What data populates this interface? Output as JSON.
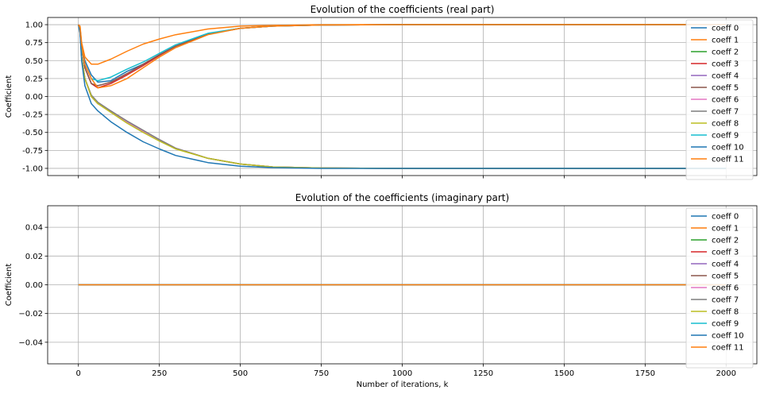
{
  "chart_data": [
    {
      "type": "line",
      "title": "Evolution of the coefficients (real part)",
      "xlabel": "",
      "ylabel": "Coefficient",
      "xlim": [
        -95,
        2095
      ],
      "ylim": [
        -1.1,
        1.1
      ],
      "xticks": [
        0,
        250,
        500,
        750,
        1000,
        1250,
        1500,
        1750,
        2000
      ],
      "xticklabels": [
        "",
        "",
        "",
        "",
        "",
        "",
        "",
        "",
        ""
      ],
      "yticks": [
        1.0,
        0.75,
        0.5,
        0.25,
        0.0,
        -0.25,
        -0.5,
        -0.75,
        -1.0
      ],
      "yticklabels": [
        "1.00",
        "0.75",
        "0.50",
        "0.25",
        "0.00",
        "-0.25",
        "-0.50",
        "-0.75",
        "-1.00"
      ],
      "grid": true,
      "legend_position": "upper right",
      "series": [
        {
          "name": "coeff 0",
          "color": "#1f77b4",
          "x": [
            0,
            5,
            10,
            20,
            40,
            60,
            100,
            150,
            200,
            250,
            300,
            400,
            500,
            600,
            750,
            1000,
            1500,
            2000
          ],
          "y": [
            1.0,
            0.95,
            0.7,
            0.5,
            0.3,
            0.2,
            0.22,
            0.35,
            0.45,
            0.58,
            0.7,
            0.87,
            0.95,
            0.98,
            0.995,
            1.0,
            1.0,
            1.0
          ]
        },
        {
          "name": "coeff 1",
          "color": "#ff7f0e",
          "x": [
            0,
            5,
            10,
            20,
            40,
            60,
            100,
            150,
            200,
            250,
            300,
            400,
            500,
            600,
            750,
            1000,
            1500,
            2000
          ],
          "y": [
            1.0,
            0.98,
            0.75,
            0.55,
            0.45,
            0.45,
            0.52,
            0.63,
            0.73,
            0.8,
            0.86,
            0.94,
            0.98,
            0.99,
            1.0,
            1.0,
            1.0,
            1.0
          ]
        },
        {
          "name": "coeff 2",
          "color": "#2ca02c",
          "x": [
            0,
            5,
            10,
            20,
            40,
            60,
            100,
            150,
            200,
            250,
            300,
            400,
            500,
            600,
            750,
            1000,
            1500,
            2000
          ],
          "y": [
            1.0,
            0.9,
            0.55,
            0.25,
            0.0,
            -0.1,
            -0.2,
            -0.35,
            -0.48,
            -0.6,
            -0.72,
            -0.86,
            -0.94,
            -0.98,
            -0.995,
            -1.0,
            -1.0,
            -1.0
          ]
        },
        {
          "name": "coeff 3",
          "color": "#d62728",
          "x": [
            0,
            5,
            10,
            20,
            40,
            60,
            100,
            150,
            200,
            250,
            300,
            400,
            500,
            600,
            750,
            1000,
            1500,
            2000
          ],
          "y": [
            1.0,
            0.95,
            0.7,
            0.4,
            0.18,
            0.12,
            0.18,
            0.3,
            0.43,
            0.57,
            0.7,
            0.87,
            0.95,
            0.98,
            0.995,
            1.0,
            1.0,
            1.0
          ]
        },
        {
          "name": "coeff 4",
          "color": "#9467bd",
          "x": [
            0,
            5,
            10,
            20,
            40,
            60,
            100,
            150,
            200,
            250,
            300,
            400,
            500,
            600,
            750,
            1000,
            1500,
            2000
          ],
          "y": [
            1.0,
            0.9,
            0.55,
            0.25,
            0.0,
            -0.1,
            -0.2,
            -0.35,
            -0.48,
            -0.6,
            -0.72,
            -0.86,
            -0.94,
            -0.98,
            -0.995,
            -1.0,
            -1.0,
            -1.0
          ]
        },
        {
          "name": "coeff 5",
          "color": "#8c564b",
          "x": [
            0,
            5,
            10,
            20,
            40,
            60,
            100,
            150,
            200,
            250,
            300,
            400,
            500,
            600,
            750,
            1000,
            1500,
            2000
          ],
          "y": [
            1.0,
            0.95,
            0.7,
            0.4,
            0.18,
            0.15,
            0.2,
            0.32,
            0.45,
            0.58,
            0.7,
            0.87,
            0.95,
            0.98,
            0.995,
            1.0,
            1.0,
            1.0
          ]
        },
        {
          "name": "coeff 6",
          "color": "#e377c2",
          "x": [
            0,
            5,
            10,
            20,
            40,
            60,
            100,
            150,
            200,
            250,
            300,
            400,
            500,
            600,
            750,
            1000,
            1500,
            2000
          ],
          "y": [
            1.0,
            0.9,
            0.55,
            0.25,
            0.0,
            -0.1,
            -0.2,
            -0.35,
            -0.48,
            -0.6,
            -0.72,
            -0.86,
            -0.94,
            -0.98,
            -0.995,
            -1.0,
            -1.0,
            -1.0
          ]
        },
        {
          "name": "coeff 7",
          "color": "#7f7f7f",
          "x": [
            0,
            5,
            10,
            20,
            40,
            60,
            100,
            150,
            200,
            250,
            300,
            400,
            500,
            600,
            750,
            1000,
            1500,
            2000
          ],
          "y": [
            1.0,
            0.9,
            0.55,
            0.25,
            0.02,
            -0.08,
            -0.2,
            -0.34,
            -0.47,
            -0.6,
            -0.72,
            -0.86,
            -0.94,
            -0.98,
            -0.995,
            -1.0,
            -1.0,
            -1.0
          ]
        },
        {
          "name": "coeff 8",
          "color": "#bcbd22",
          "x": [
            0,
            5,
            10,
            20,
            40,
            60,
            100,
            150,
            200,
            250,
            300,
            400,
            500,
            600,
            750,
            1000,
            1500,
            2000
          ],
          "y": [
            1.0,
            0.9,
            0.55,
            0.25,
            0.0,
            -0.1,
            -0.22,
            -0.37,
            -0.5,
            -0.62,
            -0.73,
            -0.86,
            -0.94,
            -0.98,
            -0.995,
            -1.0,
            -1.0,
            -1.0
          ]
        },
        {
          "name": "coeff 9",
          "color": "#17becf",
          "x": [
            0,
            5,
            10,
            20,
            40,
            60,
            100,
            150,
            200,
            250,
            300,
            400,
            500,
            600,
            750,
            1000,
            1500,
            2000
          ],
          "y": [
            1.0,
            0.95,
            0.7,
            0.45,
            0.25,
            0.22,
            0.27,
            0.38,
            0.48,
            0.6,
            0.72,
            0.88,
            0.95,
            0.98,
            0.995,
            1.0,
            1.0,
            1.0
          ]
        },
        {
          "name": "coeff 10",
          "color": "#1f77b4",
          "x": [
            0,
            5,
            10,
            20,
            40,
            60,
            100,
            150,
            200,
            250,
            300,
            400,
            500,
            600,
            750,
            1000,
            1500,
            2000
          ],
          "y": [
            1.0,
            0.88,
            0.5,
            0.15,
            -0.1,
            -0.2,
            -0.35,
            -0.5,
            -0.63,
            -0.73,
            -0.82,
            -0.92,
            -0.97,
            -0.99,
            -1.0,
            -1.0,
            -1.0,
            -1.0
          ]
        },
        {
          "name": "coeff 11",
          "color": "#ff7f0e",
          "x": [
            0,
            5,
            10,
            20,
            40,
            60,
            100,
            150,
            200,
            250,
            300,
            400,
            500,
            600,
            750,
            1000,
            1500,
            2000
          ],
          "y": [
            1.0,
            0.96,
            0.72,
            0.45,
            0.25,
            0.12,
            0.15,
            0.25,
            0.4,
            0.55,
            0.68,
            0.86,
            0.95,
            0.98,
            0.995,
            1.0,
            1.0,
            1.0
          ]
        }
      ]
    },
    {
      "type": "line",
      "title": "Evolution of the coefficients (imaginary part)",
      "xlabel": "Number of iterations, k",
      "ylabel": "Coefficient",
      "xlim": [
        -95,
        2095
      ],
      "ylim": [
        -0.055,
        0.055
      ],
      "xticks": [
        0,
        250,
        500,
        750,
        1000,
        1250,
        1500,
        1750,
        2000
      ],
      "xticklabels": [
        "0",
        "250",
        "500",
        "750",
        "1000",
        "1250",
        "1500",
        "1750",
        "2000"
      ],
      "yticks": [
        0.04,
        0.02,
        0.0,
        -0.02,
        -0.04
      ],
      "yticklabels": [
        "0.04",
        "0.02",
        "0.00",
        "−0.02",
        "−0.04"
      ],
      "grid": true,
      "legend_position": "upper right",
      "series": [
        {
          "name": "coeff 0",
          "color": "#1f77b4",
          "x": [
            0,
            2000
          ],
          "y": [
            0,
            0
          ]
        },
        {
          "name": "coeff 1",
          "color": "#ff7f0e",
          "x": [
            0,
            2000
          ],
          "y": [
            0,
            0
          ]
        },
        {
          "name": "coeff 2",
          "color": "#2ca02c",
          "x": [
            0,
            2000
          ],
          "y": [
            0,
            0
          ]
        },
        {
          "name": "coeff 3",
          "color": "#d62728",
          "x": [
            0,
            2000
          ],
          "y": [
            0,
            0
          ]
        },
        {
          "name": "coeff 4",
          "color": "#9467bd",
          "x": [
            0,
            2000
          ],
          "y": [
            0,
            0
          ]
        },
        {
          "name": "coeff 5",
          "color": "#8c564b",
          "x": [
            0,
            2000
          ],
          "y": [
            0,
            0
          ]
        },
        {
          "name": "coeff 6",
          "color": "#e377c2",
          "x": [
            0,
            2000
          ],
          "y": [
            0,
            0
          ]
        },
        {
          "name": "coeff 7",
          "color": "#7f7f7f",
          "x": [
            0,
            2000
          ],
          "y": [
            0,
            0
          ]
        },
        {
          "name": "coeff 8",
          "color": "#bcbd22",
          "x": [
            0,
            2000
          ],
          "y": [
            0,
            0
          ]
        },
        {
          "name": "coeff 9",
          "color": "#17becf",
          "x": [
            0,
            2000
          ],
          "y": [
            0,
            0
          ]
        },
        {
          "name": "coeff 10",
          "color": "#1f77b4",
          "x": [
            0,
            2000
          ],
          "y": [
            0,
            0
          ]
        },
        {
          "name": "coeff 11",
          "color": "#ff7f0e",
          "x": [
            0,
            2000
          ],
          "y": [
            0,
            0
          ]
        }
      ]
    }
  ]
}
